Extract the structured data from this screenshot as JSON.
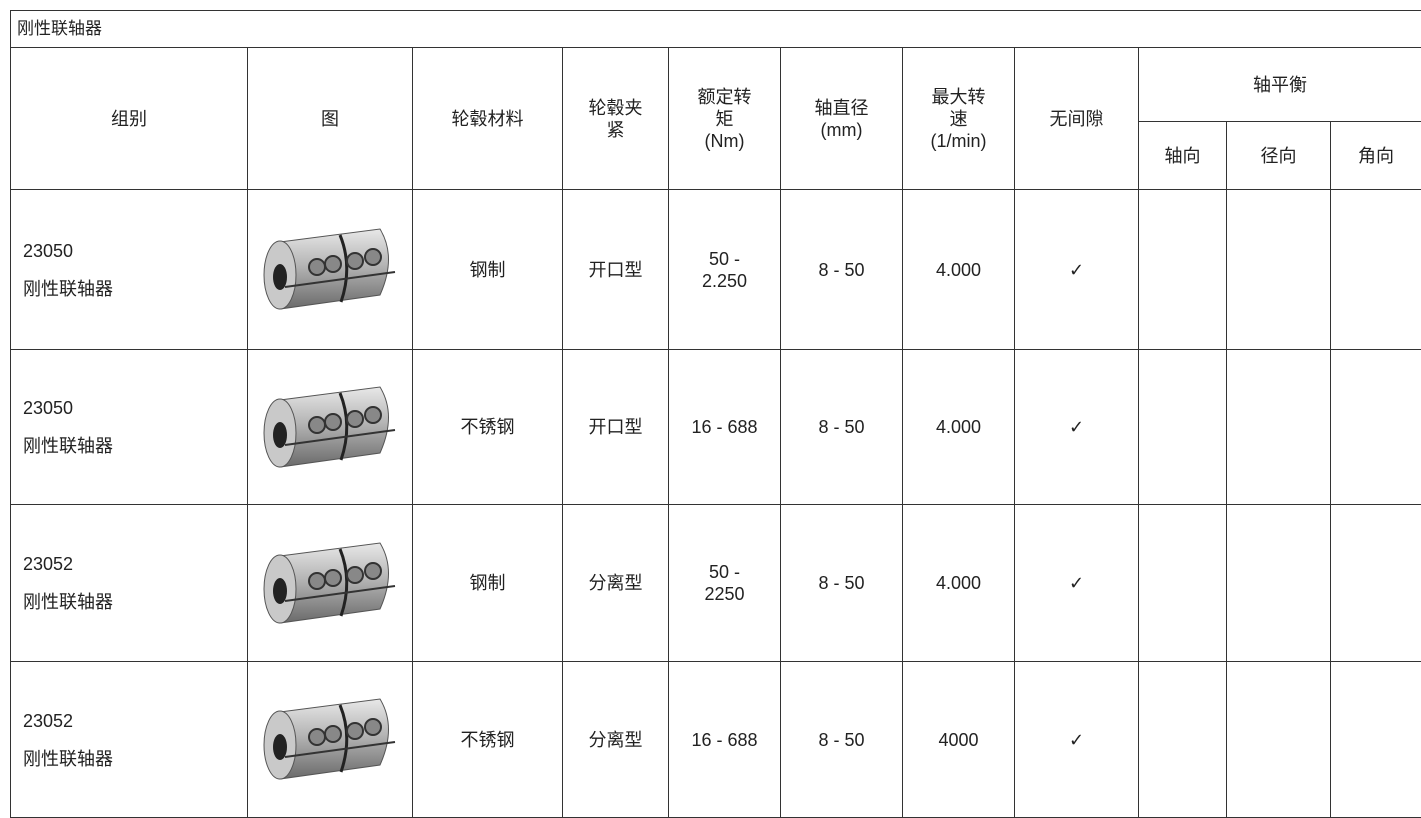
{
  "title": "刚性联轴器",
  "header": {
    "columns": [
      [
        "组别"
      ],
      [
        "图"
      ],
      [
        "轮毂材料"
      ],
      [
        "轮毂夹",
        "紧"
      ],
      [
        "额定转",
        "矩",
        "(Nm)"
      ],
      [
        "轴直径",
        "(mm)"
      ],
      [
        "最大转",
        "速",
        "(1/min)"
      ],
      [
        "无间隙"
      ]
    ],
    "group": {
      "label": "轴平衡",
      "sub": [
        "轴向",
        "径向",
        "角向"
      ]
    }
  },
  "rows": [
    {
      "group": [
        "23050",
        "刚性联轴器"
      ],
      "material": "钢制",
      "clamp": "开口型",
      "torque": [
        "50 -",
        "2.250"
      ],
      "diameter": "8 - 50",
      "speed": "4.000",
      "backlash": "✓"
    },
    {
      "group": [
        "23050",
        "刚性联轴器"
      ],
      "material": "不锈钢",
      "clamp": "开口型",
      "torque": [
        "16 - 688"
      ],
      "diameter": "8 - 50",
      "speed": "4.000",
      "backlash": "✓"
    },
    {
      "group": [
        "23052",
        "刚性联轴器"
      ],
      "material": "钢制",
      "clamp": "分离型",
      "torque": [
        "50 -",
        "2250"
      ],
      "diameter": "8 - 50",
      "speed": "4.000",
      "backlash": "✓"
    },
    {
      "group": [
        "23052",
        "刚性联轴器"
      ],
      "material": "不锈钢",
      "clamp": "分离型",
      "torque": [
        "16 - 688"
      ],
      "diameter": "8 - 50",
      "speed": "4000",
      "backlash": "✓"
    }
  ]
}
